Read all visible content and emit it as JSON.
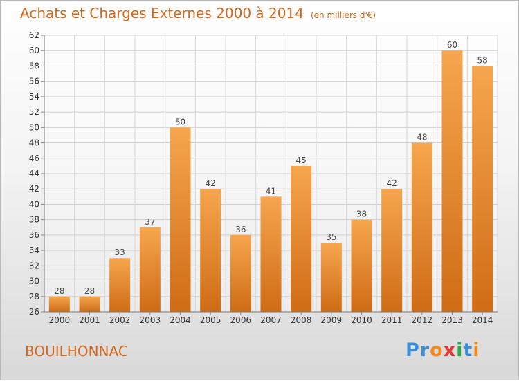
{
  "header": {
    "title": "Achats et Charges Externes 2000 à 2014",
    "unit": "(en milliers d'€)"
  },
  "footer": {
    "town": "BOUILHONNAC",
    "brand": "Proxiti"
  },
  "colors": {
    "accent": "#d2691e",
    "bar_light": "#f6a64e",
    "bar_dark": "#cf6c15"
  },
  "chart_data": {
    "type": "bar",
    "categories": [
      "2000",
      "2001",
      "2002",
      "2003",
      "2004",
      "2005",
      "2006",
      "2007",
      "2008",
      "2009",
      "2010",
      "2011",
      "2012",
      "2013",
      "2014"
    ],
    "values": [
      28,
      28,
      33,
      37,
      50,
      42,
      36,
      41,
      45,
      35,
      38,
      42,
      48,
      60,
      58
    ],
    "title": "Achats et Charges Externes 2000 à 2014",
    "subtitle": "(en milliers d'€)",
    "ylim": [
      26,
      62
    ],
    "yticks": [
      26,
      28,
      30,
      32,
      34,
      36,
      38,
      40,
      42,
      44,
      46,
      48,
      50,
      52,
      54,
      56,
      58,
      60,
      62
    ],
    "grid": true
  }
}
